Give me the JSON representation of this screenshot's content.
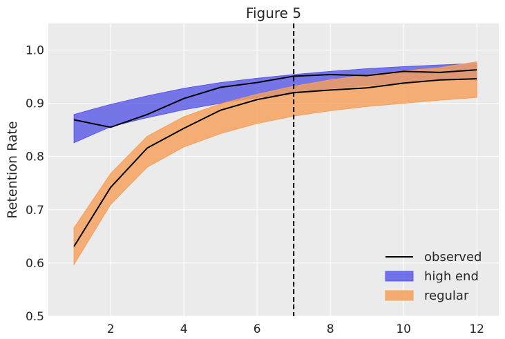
{
  "chart_data": {
    "type": "line",
    "title": "Figure 5",
    "xlabel": "",
    "ylabel": "Retention Rate",
    "xlim": [
      0.3,
      12.6
    ],
    "ylim": [
      0.5,
      1.05
    ],
    "xticks": [
      2,
      4,
      6,
      8,
      10,
      12
    ],
    "yticks": [
      0.5,
      0.6,
      0.7,
      0.8,
      0.9,
      1.0
    ],
    "xtick_labels": [
      "2",
      "4",
      "6",
      "8",
      "10",
      "12"
    ],
    "ytick_labels": [
      "0.5",
      "0.6",
      "0.7",
      "0.8",
      "0.9",
      "1.0"
    ],
    "grid": true,
    "legend_position": "bottom-right",
    "vline": {
      "x": 7,
      "style": "dashed",
      "color": "#000000"
    },
    "x": [
      1,
      2,
      3,
      4,
      5,
      6,
      7,
      8,
      9,
      10,
      11,
      12
    ],
    "bands": [
      {
        "name": "high end",
        "color": "#5a5ae6",
        "lower": [
          0.826,
          0.856,
          0.873,
          0.888,
          0.9,
          0.911,
          0.92,
          0.928,
          0.934,
          0.939,
          0.943,
          0.946
        ],
        "upper": [
          0.879,
          0.898,
          0.914,
          0.928,
          0.939,
          0.947,
          0.954,
          0.96,
          0.965,
          0.969,
          0.972,
          0.975
        ]
      },
      {
        "name": "regular",
        "color": "#f5a05a",
        "lower": [
          0.597,
          0.71,
          0.78,
          0.818,
          0.843,
          0.862,
          0.876,
          0.886,
          0.894,
          0.9,
          0.906,
          0.911
        ],
        "upper": [
          0.666,
          0.768,
          0.838,
          0.875,
          0.899,
          0.917,
          0.932,
          0.944,
          0.953,
          0.961,
          0.967,
          0.978
        ]
      }
    ],
    "series": [
      {
        "name": "observed",
        "color": "#000000",
        "values": [
          0.869,
          0.855,
          0.879,
          0.909,
          0.93,
          0.939,
          0.951,
          0.954,
          0.952,
          0.96,
          0.958,
          0.963
        ]
      },
      {
        "name": "observed",
        "color": "#000000",
        "values": [
          0.631,
          0.742,
          0.816,
          0.853,
          0.887,
          0.907,
          0.92,
          0.925,
          0.929,
          0.938,
          0.944,
          0.946
        ]
      }
    ],
    "legend": [
      {
        "label": "observed",
        "kind": "line",
        "color": "#000000"
      },
      {
        "label": "high end",
        "kind": "patch",
        "color": "#5a5ae6"
      },
      {
        "label": "regular",
        "kind": "patch",
        "color": "#f5a05a"
      }
    ]
  }
}
